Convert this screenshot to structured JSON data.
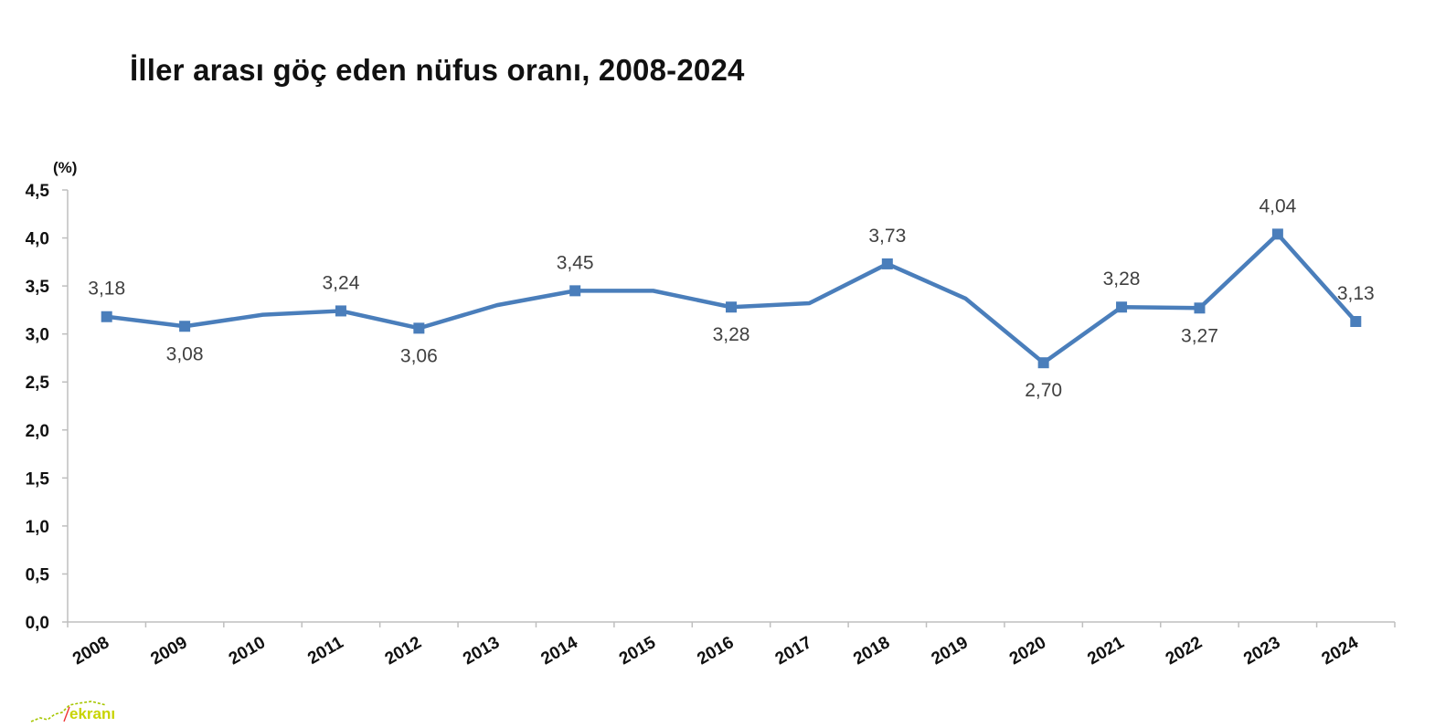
{
  "chart_data": {
    "type": "line",
    "title": "İller arası göç eden nüfus oranı, 2008-2024",
    "ylabel": "(%)",
    "xlabel": "",
    "ylim": [
      0,
      4.5
    ],
    "yticks": [
      "0,0",
      "0,5",
      "1,0",
      "1,5",
      "2,0",
      "2,5",
      "3,0",
      "3,5",
      "4,0",
      "4,5"
    ],
    "categories": [
      "2008",
      "2009",
      "2010",
      "2011",
      "2012",
      "2013",
      "2014",
      "2015",
      "2016",
      "2017",
      "2018",
      "2019",
      "2020",
      "2021",
      "2022",
      "2023",
      "2024"
    ],
    "series": [
      {
        "values": [
          3.18,
          3.08,
          3.2,
          3.24,
          3.06,
          3.3,
          3.45,
          3.45,
          3.28,
          3.32,
          3.73,
          3.37,
          2.7,
          3.28,
          3.27,
          4.04,
          3.13
        ],
        "labels": [
          "3,18",
          "3,08",
          "",
          "3,24",
          "3,06",
          "",
          "3,45",
          "",
          "3,28",
          "",
          "3,73",
          "",
          "2,70",
          "3,28",
          "3,27",
          "4,04",
          "3,13"
        ],
        "label_pos": [
          "above",
          "below",
          "",
          "above",
          "below",
          "",
          "above",
          "",
          "below",
          "",
          "above",
          "",
          "below",
          "above",
          "below",
          "above",
          "above"
        ],
        "color": "#4a7ebb"
      }
    ],
    "grid": false,
    "legend": "none"
  },
  "footer": {
    "logo_text": "ekranı"
  }
}
